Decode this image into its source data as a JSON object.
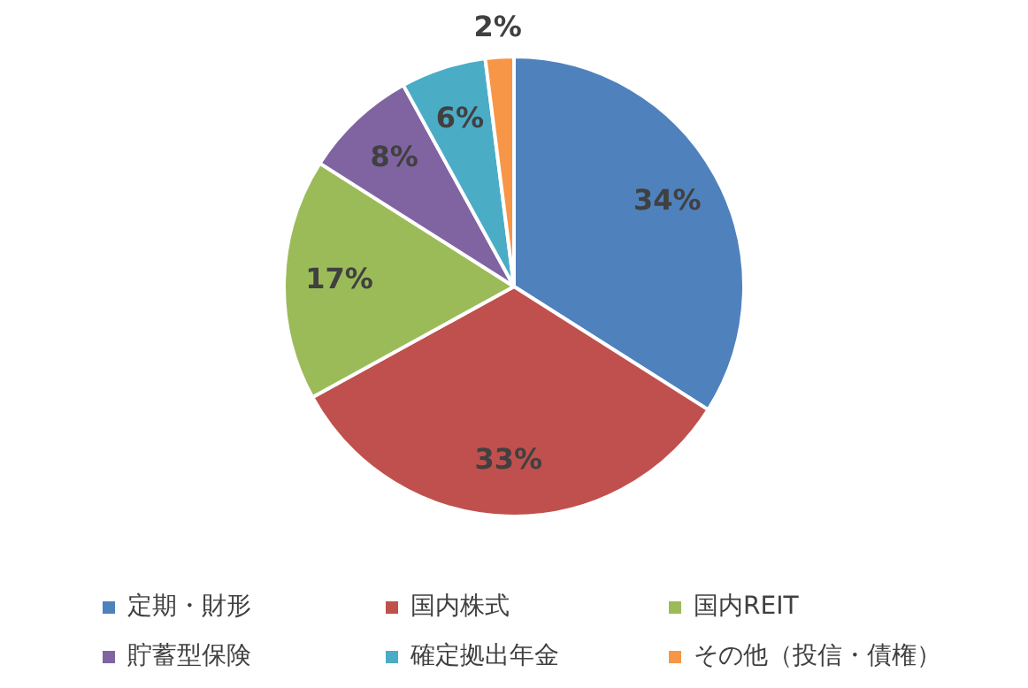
{
  "chart_data": {
    "type": "pie",
    "categories": [
      "定期・財形",
      "国内株式",
      "国内REIT",
      "貯蓄型保険",
      "確定拠出年金",
      "その他（投信・債権）"
    ],
    "values": [
      34,
      33,
      17,
      8,
      6,
      2
    ],
    "colors": [
      "#4f81bd",
      "#c0504d",
      "#9bbb59",
      "#8064a2",
      "#4bacc6",
      "#f79646"
    ],
    "value_labels": [
      "34%",
      "33%",
      "17%",
      "8%",
      "6%",
      "2%"
    ],
    "legend": "bottom"
  }
}
